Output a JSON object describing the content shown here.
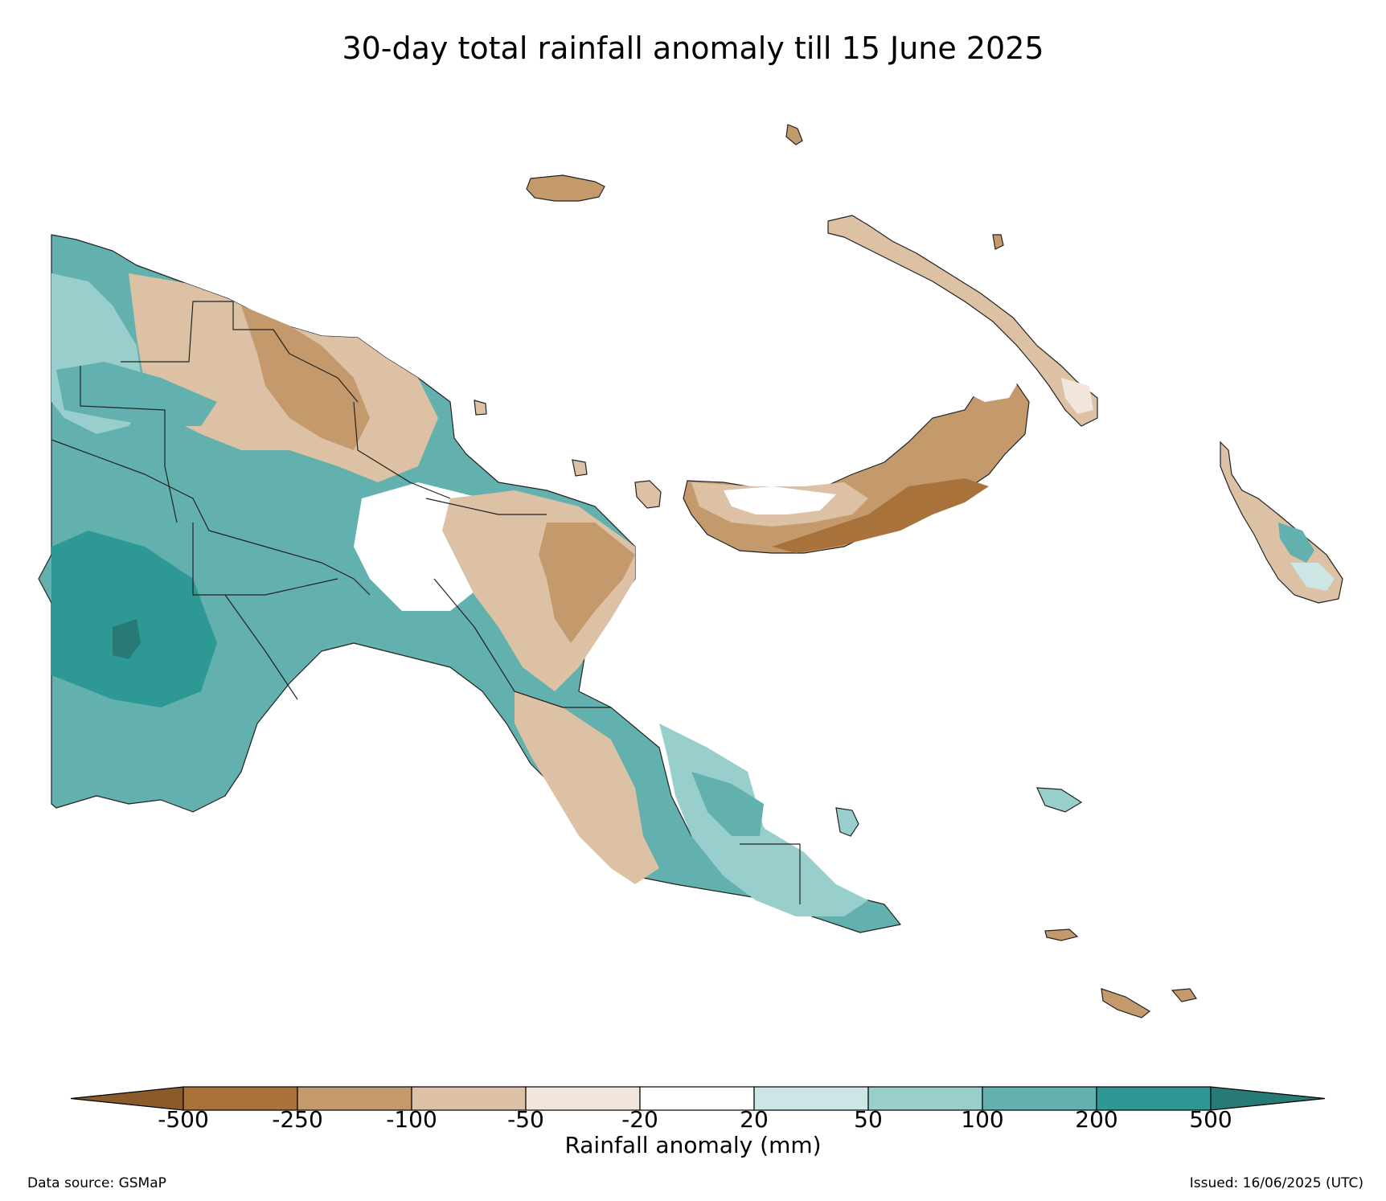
{
  "title": "30-day total rainfall anomaly till 15 June 2025",
  "colorbar": {
    "label": "Rainfall anomaly (mm)",
    "ticks": [
      "-500",
      "-250",
      "-100",
      "-50",
      "-20",
      "20",
      "50",
      "100",
      "200",
      "500"
    ],
    "colors": {
      "lt_-500": "#8a5a2a",
      "-500_-250": "#a9723b",
      "-250_-100": "#c49a6c",
      "-100_-50": "#dcc1a5",
      "-50_-20": "#f2e6dc",
      "-20_20": "#ffffff",
      "20_50": "#cbe6e4",
      "50_100": "#98cecb",
      "100_200": "#62b1ae",
      "200_500": "#2e9894",
      "gt_500": "#287a77"
    }
  },
  "footer": {
    "source": "Data source: GSMaP",
    "issued": "Issued: 16/06/2025 (UTC)"
  }
}
